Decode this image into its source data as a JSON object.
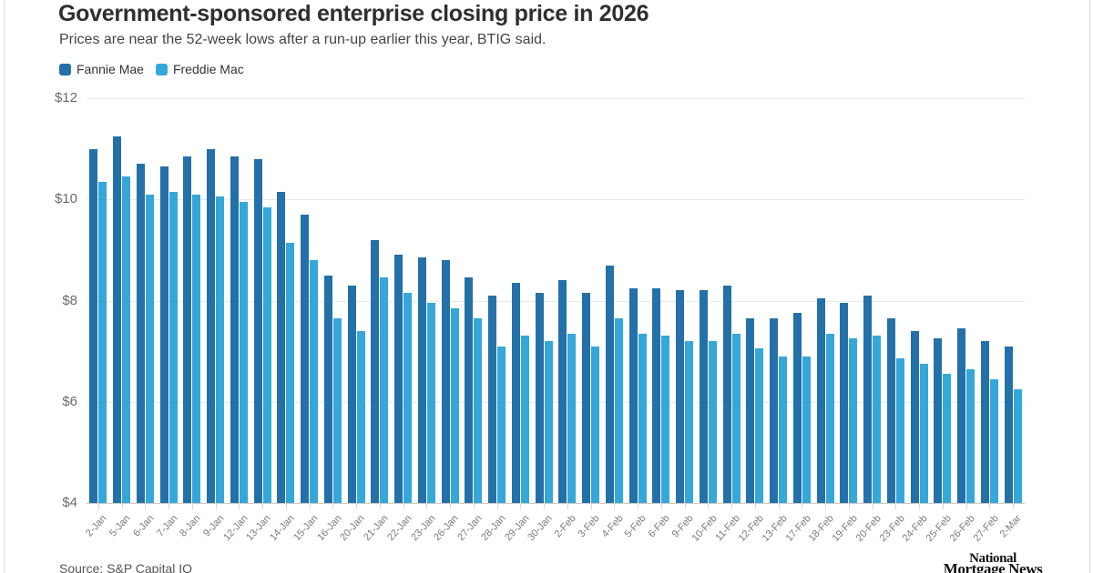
{
  "header": {
    "title": "Government-sponsored enterprise closing price in 2026",
    "subtitle": "Prices are near the 52-week lows after a run-up earlier this year, BTIG said."
  },
  "legend": [
    {
      "label": "Fannie Mae",
      "color": "#2470a8"
    },
    {
      "label": "Freddie Mac",
      "color": "#35a7d9"
    }
  ],
  "chart_data": {
    "type": "bar",
    "title": "Government-sponsored enterprise closing price in 2026",
    "subtitle": "Prices are near the 52-week lows after a run-up earlier this year, BTIG said.",
    "xlabel": "",
    "ylabel": "",
    "ylim": [
      4,
      12
    ],
    "grid": true,
    "legend_position": "top-left",
    "y_ticks": [
      {
        "label": "$12",
        "v": 12
      },
      {
        "label": "$10",
        "v": 10
      },
      {
        "label": "$8",
        "v": 8
      },
      {
        "label": "$6",
        "v": 6
      },
      {
        "label": "$4",
        "v": 4
      }
    ],
    "categories": [
      "2-Jan",
      "5-Jan",
      "6-Jan",
      "7-Jan",
      "8-Jan",
      "9-Jan",
      "12-Jan",
      "13-Jan",
      "14-Jan",
      "15-Jan",
      "16-Jan",
      "20-Jan",
      "21-Jan",
      "22-Jan",
      "23-Jan",
      "26-Jan",
      "27-Jan",
      "28-Jan",
      "29-Jan",
      "30-Jan",
      "2-Feb",
      "3-Feb",
      "4-Feb",
      "5-Feb",
      "6-Feb",
      "9-Feb",
      "10-Feb",
      "11-Feb",
      "12-Feb",
      "13-Feb",
      "17-Feb",
      "18-Feb",
      "19-Feb",
      "20-Feb",
      "23-Feb",
      "24-Feb",
      "25-Feb",
      "26-Feb",
      "27-Feb",
      "2-Mar"
    ],
    "series": [
      {
        "name": "Fannie Mae",
        "color": "#2470a8",
        "values": [
          11.0,
          11.25,
          10.7,
          10.65,
          10.85,
          11.0,
          10.85,
          10.8,
          10.15,
          9.7,
          8.5,
          8.3,
          9.2,
          8.9,
          8.85,
          8.8,
          8.45,
          8.1,
          8.35,
          8.15,
          8.4,
          8.15,
          8.7,
          8.25,
          8.25,
          8.2,
          8.2,
          8.3,
          7.65,
          7.65,
          7.75,
          8.05,
          7.95,
          8.1,
          7.65,
          7.4,
          7.25,
          7.45,
          7.2,
          7.1
        ]
      },
      {
        "name": "Freddie Mac",
        "color": "#35a7d9",
        "values": [
          10.35,
          10.45,
          10.1,
          10.15,
          10.1,
          10.05,
          9.95,
          9.85,
          9.15,
          8.8,
          7.65,
          7.4,
          8.45,
          8.15,
          7.95,
          7.85,
          7.65,
          7.1,
          7.3,
          7.2,
          7.35,
          7.1,
          7.65,
          7.35,
          7.3,
          7.2,
          7.2,
          7.35,
          7.05,
          6.9,
          6.9,
          7.35,
          7.25,
          7.3,
          6.85,
          6.75,
          6.55,
          6.65,
          6.45,
          6.25
        ]
      }
    ]
  },
  "footer": {
    "source": "Source: S&P Capital IQ",
    "logo_line1": "National",
    "logo_line2": "Mortgage News"
  },
  "colors": {
    "fannie_mae": "#2470a8",
    "freddie_mac": "#35a7d9",
    "title_text": "#2f2f2f",
    "gridline": "#e9e9e9",
    "axis_line": "#c8c8c8"
  }
}
